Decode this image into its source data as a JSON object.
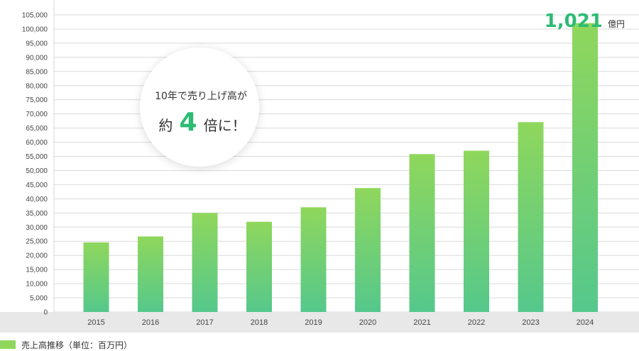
{
  "chart_data": {
    "type": "bar",
    "categories": [
      "2015",
      "2016",
      "2017",
      "2018",
      "2019",
      "2020",
      "2021",
      "2022",
      "2023",
      "2024"
    ],
    "series": [
      {
        "name": "売上高推移（単位：百万円）",
        "values": [
          24600,
          26700,
          35000,
          31900,
          37000,
          43800,
          55800,
          57000,
          67100,
          102100
        ]
      }
    ],
    "ylim": [
      0,
      105000
    ],
    "yticks": [
      "0",
      "5,000",
      "10,000",
      "15,000",
      "20,000",
      "25,000",
      "30,000",
      "35,000",
      "40,000",
      "45,000",
      "50,000",
      "55,000",
      "60,000",
      "65,000",
      "70,000",
      "75,000",
      "80,000",
      "85,000",
      "90,000",
      "95,000",
      "100,000",
      "105,000"
    ],
    "grid": true,
    "legend_position": "bottom-left",
    "annotation_value": {
      "number": "1,021",
      "unit": "億円"
    },
    "callout": {
      "line1": "10年で売り上げ高が",
      "prefix": "約",
      "number": "4",
      "suffix": "倍に！"
    },
    "colors": {
      "bar_top": "#8fd75c",
      "bar_bottom": "#55c88c",
      "accent": "#2dbb73",
      "grid": "#d9d9d9",
      "axis_band": "#e8e8e8"
    }
  }
}
